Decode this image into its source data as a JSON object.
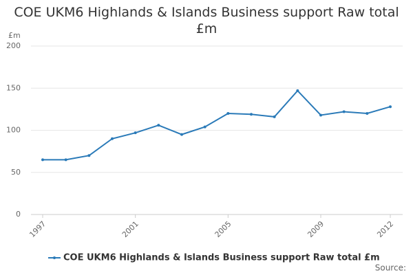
{
  "chart_data": {
    "type": "line",
    "title": "COE UKM6 Highlands & Islands Business support Raw total £m",
    "y_label": "£m",
    "x": [
      1997,
      1998,
      1999,
      2000,
      2001,
      2002,
      2003,
      2004,
      2005,
      2006,
      2007,
      2008,
      2009,
      2010,
      2011,
      2012
    ],
    "series": [
      {
        "name": "COE UKM6 Highlands & Islands Business support Raw total £m",
        "color": "#2a7ab8",
        "values": [
          65,
          65,
          70,
          90,
          97,
          106,
          95,
          104,
          120,
          119,
          116,
          147,
          118,
          122,
          120,
          128
        ]
      }
    ],
    "xlim": [
      1997,
      2012
    ],
    "xticks": [
      1997,
      2001,
      2005,
      2009,
      2012
    ],
    "ylim": [
      0,
      200
    ],
    "yticks": [
      0,
      50,
      100,
      150,
      200
    ],
    "grid": true,
    "legend": "bottom",
    "source": "Source:"
  }
}
